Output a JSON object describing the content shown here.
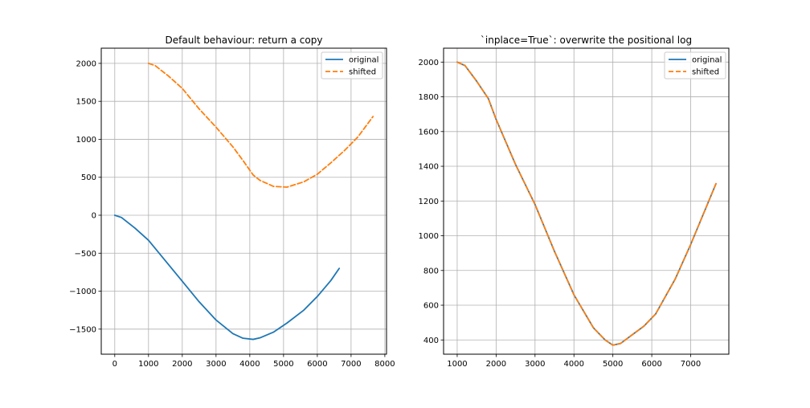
{
  "chart_data": [
    {
      "type": "line",
      "title": "Default behaviour: return a copy",
      "xlabel": "",
      "ylabel": "",
      "xlim": [
        -400,
        8050
      ],
      "ylim": [
        -1830,
        2200
      ],
      "xticks": [
        0,
        1000,
        2000,
        3000,
        4000,
        5000,
        6000,
        7000,
        8000
      ],
      "yticks": [
        -1500,
        -1000,
        -500,
        0,
        500,
        1000,
        1500,
        2000
      ],
      "xtick_labels": [
        "0",
        "1000",
        "2000",
        "3000",
        "4000",
        "5000",
        "6000",
        "7000",
        "8000"
      ],
      "ytick_labels": [
        "−1500",
        "−1000",
        "−500",
        "0",
        "500",
        "1000",
        "1500",
        "2000"
      ],
      "grid": true,
      "legend": "top-right",
      "series": [
        {
          "name": "original",
          "color": "#1f77b4",
          "style": "solid",
          "x": [
            0,
            200,
            600,
            1000,
            1500,
            2000,
            2500,
            3000,
            3500,
            3800,
            4100,
            4300,
            4700,
            5100,
            5600,
            6000,
            6400,
            6650
          ],
          "y": [
            0,
            -30,
            -170,
            -330,
            -600,
            -870,
            -1140,
            -1380,
            -1560,
            -1620,
            -1635,
            -1615,
            -1540,
            -1420,
            -1250,
            -1070,
            -860,
            -700
          ]
        },
        {
          "name": "shifted",
          "color": "#ff7f0e",
          "style": "dashed",
          "x": [
            1000,
            1200,
            1600,
            2000,
            2500,
            3000,
            3500,
            3800,
            4100,
            4300,
            4700,
            5100,
            5600,
            6000,
            6400,
            6800,
            7200,
            7650
          ],
          "y": [
            2000,
            1970,
            1830,
            1670,
            1400,
            1160,
            900,
            720,
            530,
            460,
            380,
            370,
            440,
            540,
            690,
            850,
            1030,
            1300
          ]
        }
      ]
    },
    {
      "type": "line",
      "title": "`inplace=True`: overwrite the positional log",
      "xlabel": "",
      "ylabel": "",
      "xlim": [
        650,
        7980
      ],
      "ylim": [
        318,
        2080
      ],
      "xticks": [
        1000,
        2000,
        3000,
        4000,
        5000,
        6000,
        7000
      ],
      "yticks": [
        400,
        600,
        800,
        1000,
        1200,
        1400,
        1600,
        1800,
        2000
      ],
      "xtick_labels": [
        "1000",
        "2000",
        "3000",
        "4000",
        "5000",
        "6000",
        "7000"
      ],
      "ytick_labels": [
        "400",
        "600",
        "800",
        "1000",
        "1200",
        "1400",
        "1600",
        "1800",
        "2000"
      ],
      "grid": true,
      "legend": "top-right",
      "series": [
        {
          "name": "original",
          "color": "#1f77b4",
          "style": "solid",
          "x": [
            1000,
            1200,
            1500,
            1800,
            2000,
            2500,
            3000,
            3500,
            4000,
            4500,
            4800,
            5000,
            5200,
            5500,
            5800,
            6100,
            6600,
            7000,
            7650
          ],
          "y": [
            2000,
            1980,
            1890,
            1790,
            1670,
            1410,
            1180,
            910,
            660,
            470,
            400,
            370,
            380,
            430,
            480,
            550,
            750,
            950,
            1300
          ]
        },
        {
          "name": "shifted",
          "color": "#ff7f0e",
          "style": "dashed",
          "x": [
            1000,
            1200,
            1500,
            1800,
            2000,
            2500,
            3000,
            3500,
            4000,
            4500,
            4800,
            5000,
            5200,
            5500,
            5800,
            6100,
            6600,
            7000,
            7650
          ],
          "y": [
            2000,
            1980,
            1890,
            1790,
            1670,
            1410,
            1180,
            910,
            660,
            470,
            400,
            370,
            380,
            430,
            480,
            550,
            750,
            950,
            1300
          ]
        }
      ]
    }
  ]
}
